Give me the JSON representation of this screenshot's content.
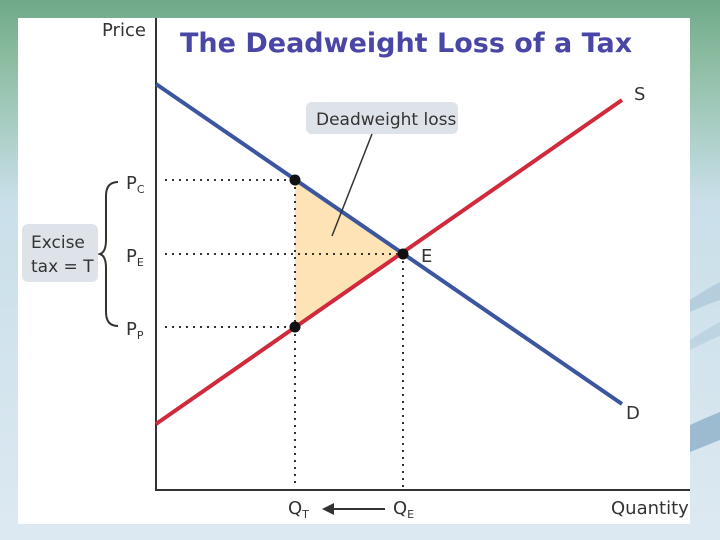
{
  "slide": {
    "title": "The Deadweight Loss of a Tax"
  },
  "diagram": {
    "y_axis_label": "Price",
    "x_axis_label": "Quantity",
    "supply_label": "S",
    "demand_label": "D",
    "equilibrium_label": "E",
    "callout_label": "Deadweight loss",
    "tax_label_line1": "Excise",
    "tax_label_line2": "tax = T",
    "price_labels": {
      "consumer": {
        "main": "P",
        "sub": "C"
      },
      "equilibrium": {
        "main": "P",
        "sub": "E"
      },
      "producer": {
        "main": "P",
        "sub": "P"
      }
    },
    "quantity_labels": {
      "tax": {
        "main": "Q",
        "sub": "T"
      },
      "equilibrium": {
        "main": "Q",
        "sub": "E"
      }
    },
    "colors": {
      "supply": "#d02a3c",
      "demand": "#3b55a0",
      "deadweight_fill": "#fde3b5",
      "callout_bg": "#dde3e8",
      "title": "#4a46a6"
    }
  }
}
